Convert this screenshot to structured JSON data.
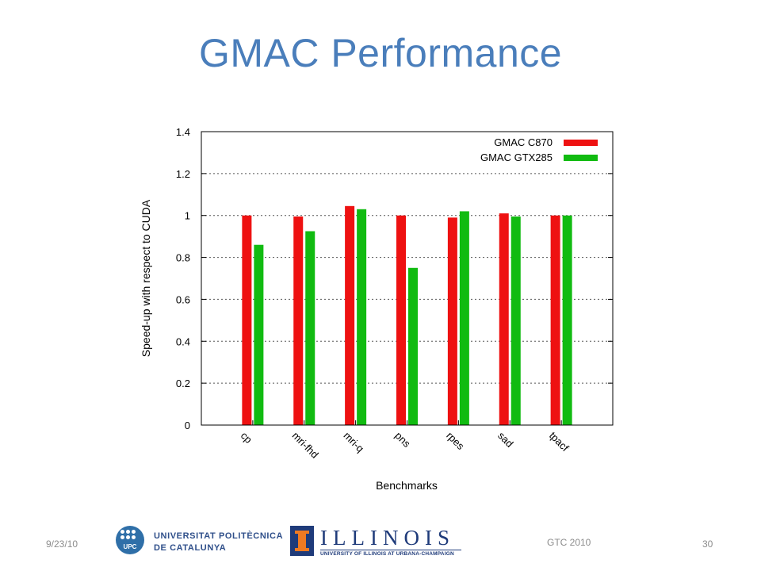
{
  "slide": {
    "title": "GMAC Performance",
    "date": "9/23/10",
    "event": "GTC 2010",
    "page_number": "30"
  },
  "logos": {
    "upc_line1": "UNIVERSITAT POLITÈCNICA",
    "upc_line2": "DE CATALUNYA",
    "upc_abbr": "UPC",
    "illinois_word": "ILLINOIS",
    "illinois_sub": "UNIVERSITY OF ILLINOIS AT URBANA-CHAMPAIGN"
  },
  "chart_data": {
    "type": "bar",
    "title": "",
    "xlabel": "Benchmarks",
    "ylabel": "Speed-up with respect to CUDA",
    "ylim": [
      0,
      1.4
    ],
    "yticks": [
      "0",
      "0.2",
      "0.4",
      "0.6",
      "0.8",
      "1",
      "1.2",
      "1.4"
    ],
    "categories": [
      "cp",
      "mri-fhd",
      "mri-q",
      "pns",
      "rpes",
      "sad",
      "tpacf"
    ],
    "series": [
      {
        "name": "GMAC C870",
        "color": "#ee1111",
        "values": [
          1.0,
          0.995,
          1.045,
          1.0,
          0.99,
          1.01,
          1.0
        ]
      },
      {
        "name": "GMAC GTX285",
        "color": "#11bb11",
        "values": [
          0.86,
          0.925,
          1.03,
          0.75,
          1.02,
          0.995,
          1.0
        ]
      }
    ],
    "grid": true,
    "legend_position": "top-right"
  }
}
